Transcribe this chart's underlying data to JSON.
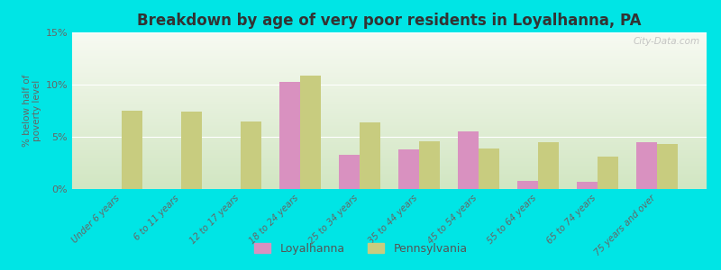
{
  "title": "Breakdown by age of very poor residents in Loyalhanna, PA",
  "ylabel": "% below half of\npoverty level",
  "categories": [
    "Under 6 years",
    "6 to 11 years",
    "12 to 17 years",
    "18 to 24 years",
    "25 to 34 years",
    "35 to 44 years",
    "45 to 54 years",
    "55 to 64 years",
    "65 to 74 years",
    "75 years and over"
  ],
  "loyalhanna": [
    0.0,
    0.0,
    0.0,
    10.3,
    3.3,
    3.8,
    5.5,
    0.8,
    0.7,
    4.5
  ],
  "pennsylvania": [
    7.5,
    7.4,
    6.5,
    10.9,
    6.4,
    4.6,
    3.9,
    4.5,
    3.1,
    4.3
  ],
  "loyalhanna_color": "#d991c0",
  "pennsylvania_color": "#c8cc7f",
  "background_outer": "#00e5e5",
  "title_color": "#333333",
  "bar_width": 0.35,
  "ylim": [
    0,
    15
  ],
  "yticks": [
    0,
    5,
    10,
    15
  ],
  "ytick_labels": [
    "0%",
    "5%",
    "10%",
    "15%"
  ],
  "watermark": "City-Data.com",
  "legend_loyalhanna": "Loyalhanna",
  "legend_pennsylvania": "Pennsylvania"
}
